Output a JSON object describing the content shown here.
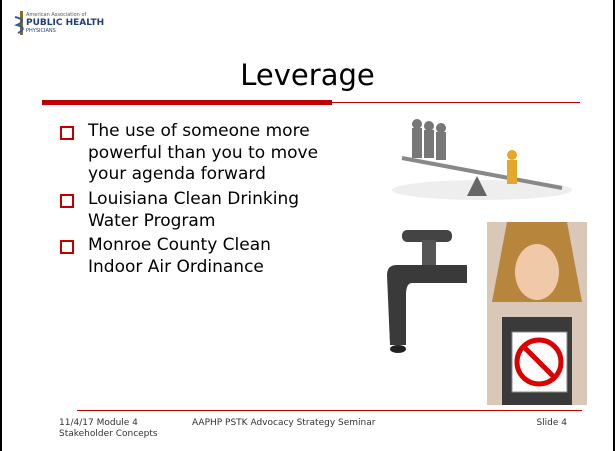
{
  "logo": {
    "line1": "American Association of",
    "line2": "PUBLIC HEALTH",
    "line3": "PHYSICIANS"
  },
  "title": "Leverage",
  "bullets": [
    "The use of someone more powerful than you to move your agenda forward",
    "Louisiana Clean Drinking Water Program",
    "Monroe County Clean Indoor Air Ordinance"
  ],
  "footer": {
    "date": "11/4/17",
    "left": "Module 4 Stakeholder Concepts",
    "center": "AAPHP PSTK Advocacy Strategy Seminar",
    "right": "Slide 4"
  }
}
